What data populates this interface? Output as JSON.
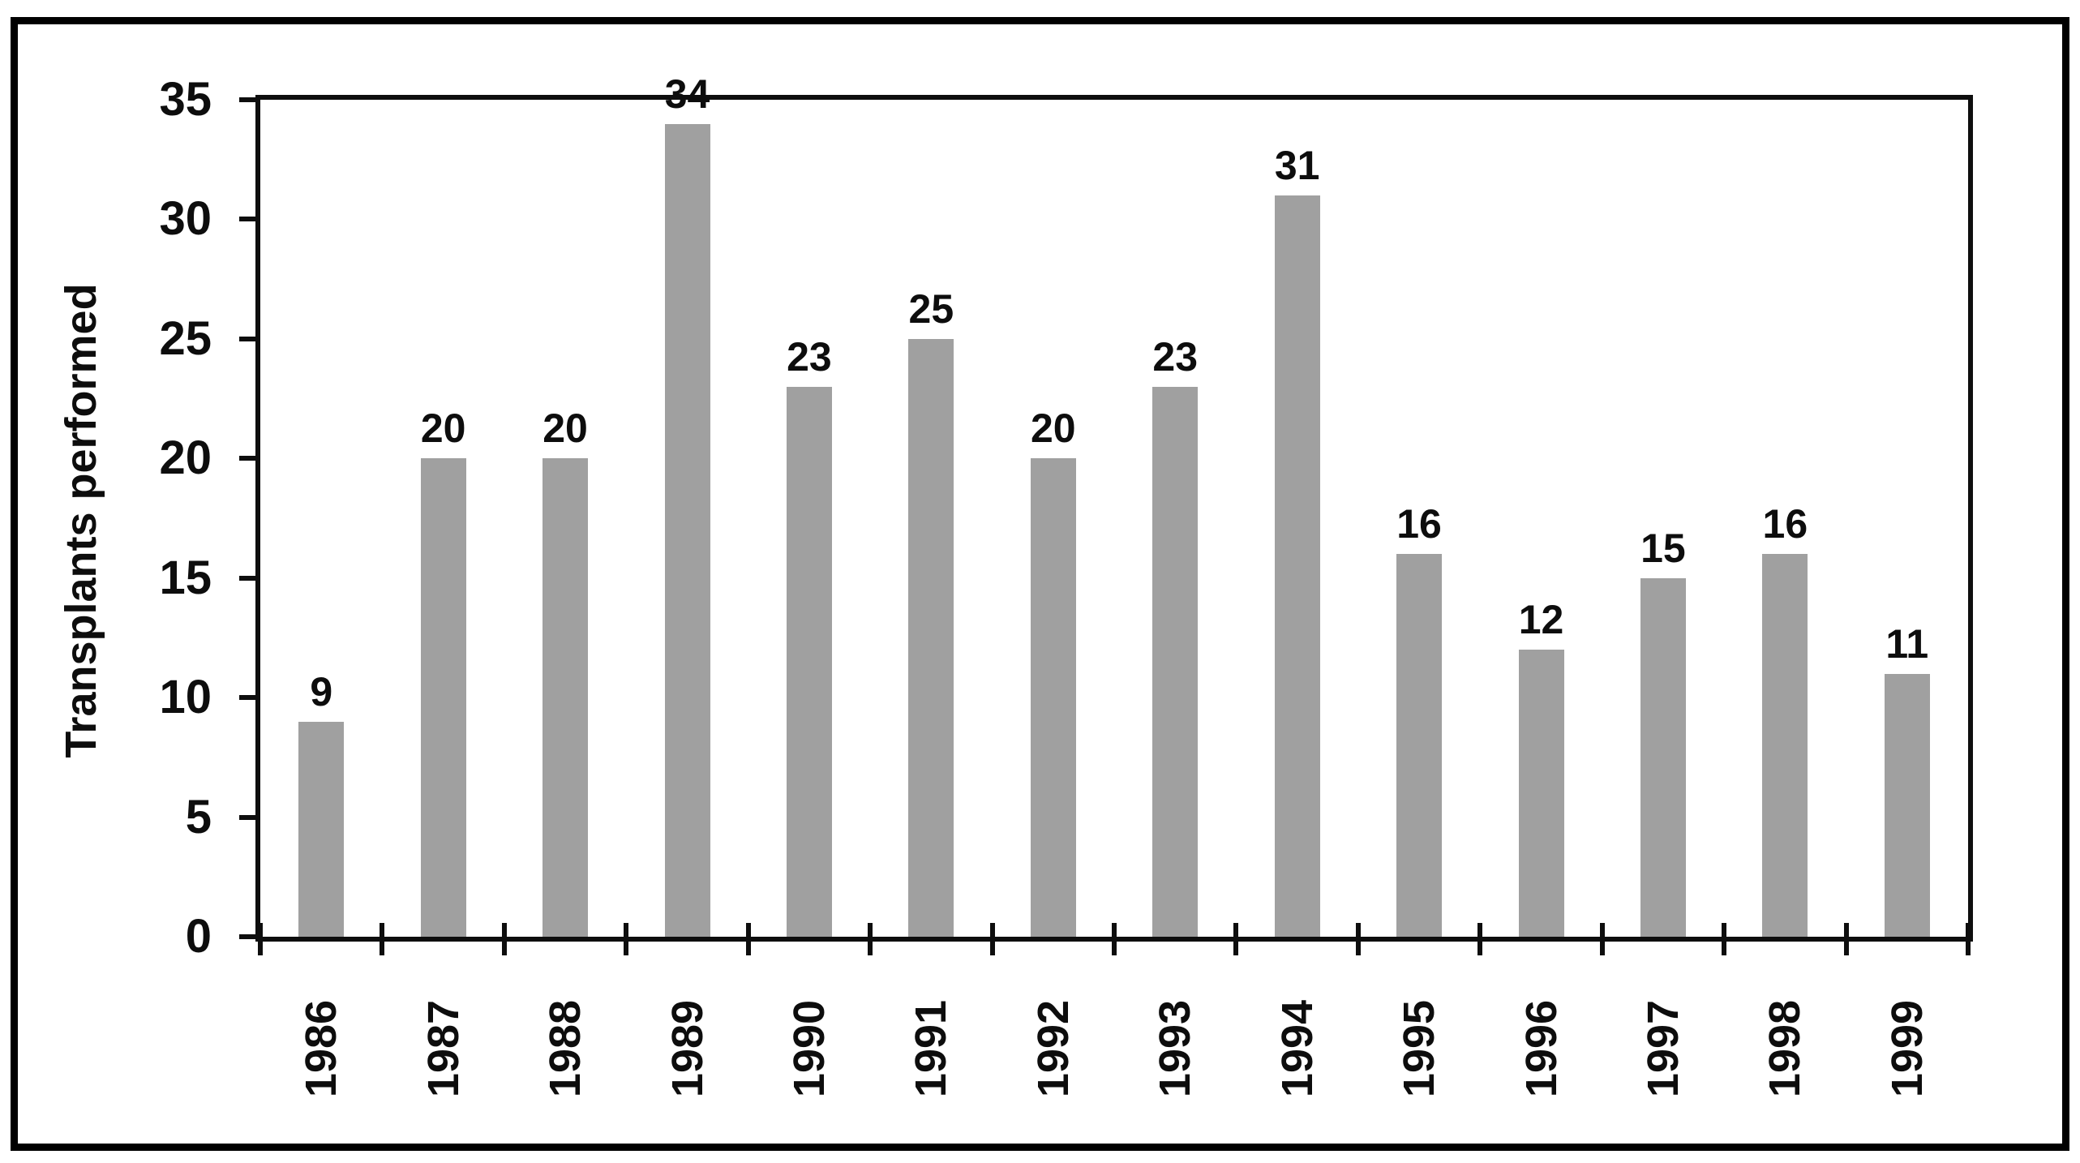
{
  "figure": {
    "ylabel": "Transplants performed",
    "bar_color": "#a0a0a0",
    "axis_color": "#0e0e0e",
    "text_color": "#0d0d0d",
    "frame_color": "#000000",
    "background": "#ffffff"
  },
  "chart_data": {
    "type": "bar",
    "categories": [
      "1986",
      "1987",
      "1988",
      "1989",
      "1990",
      "1991",
      "1992",
      "1993",
      "1994",
      "1995",
      "1996",
      "1997",
      "1998",
      "1999"
    ],
    "values": [
      9,
      20,
      20,
      34,
      23,
      25,
      20,
      23,
      31,
      16,
      12,
      15,
      16,
      11
    ],
    "data_labels": [
      "9",
      "20",
      "20",
      "34",
      "23",
      "25",
      "20",
      "23",
      "31",
      "16",
      "12",
      "15",
      "16",
      "11"
    ],
    "title": "",
    "xlabel": "",
    "ylabel": "Transplants performed",
    "ylim": [
      0,
      35
    ],
    "yticks": [
      0,
      5,
      10,
      15,
      20,
      25,
      30,
      35
    ],
    "grid": false,
    "legend_position": "none",
    "bar_color": "#a0a0a0"
  }
}
